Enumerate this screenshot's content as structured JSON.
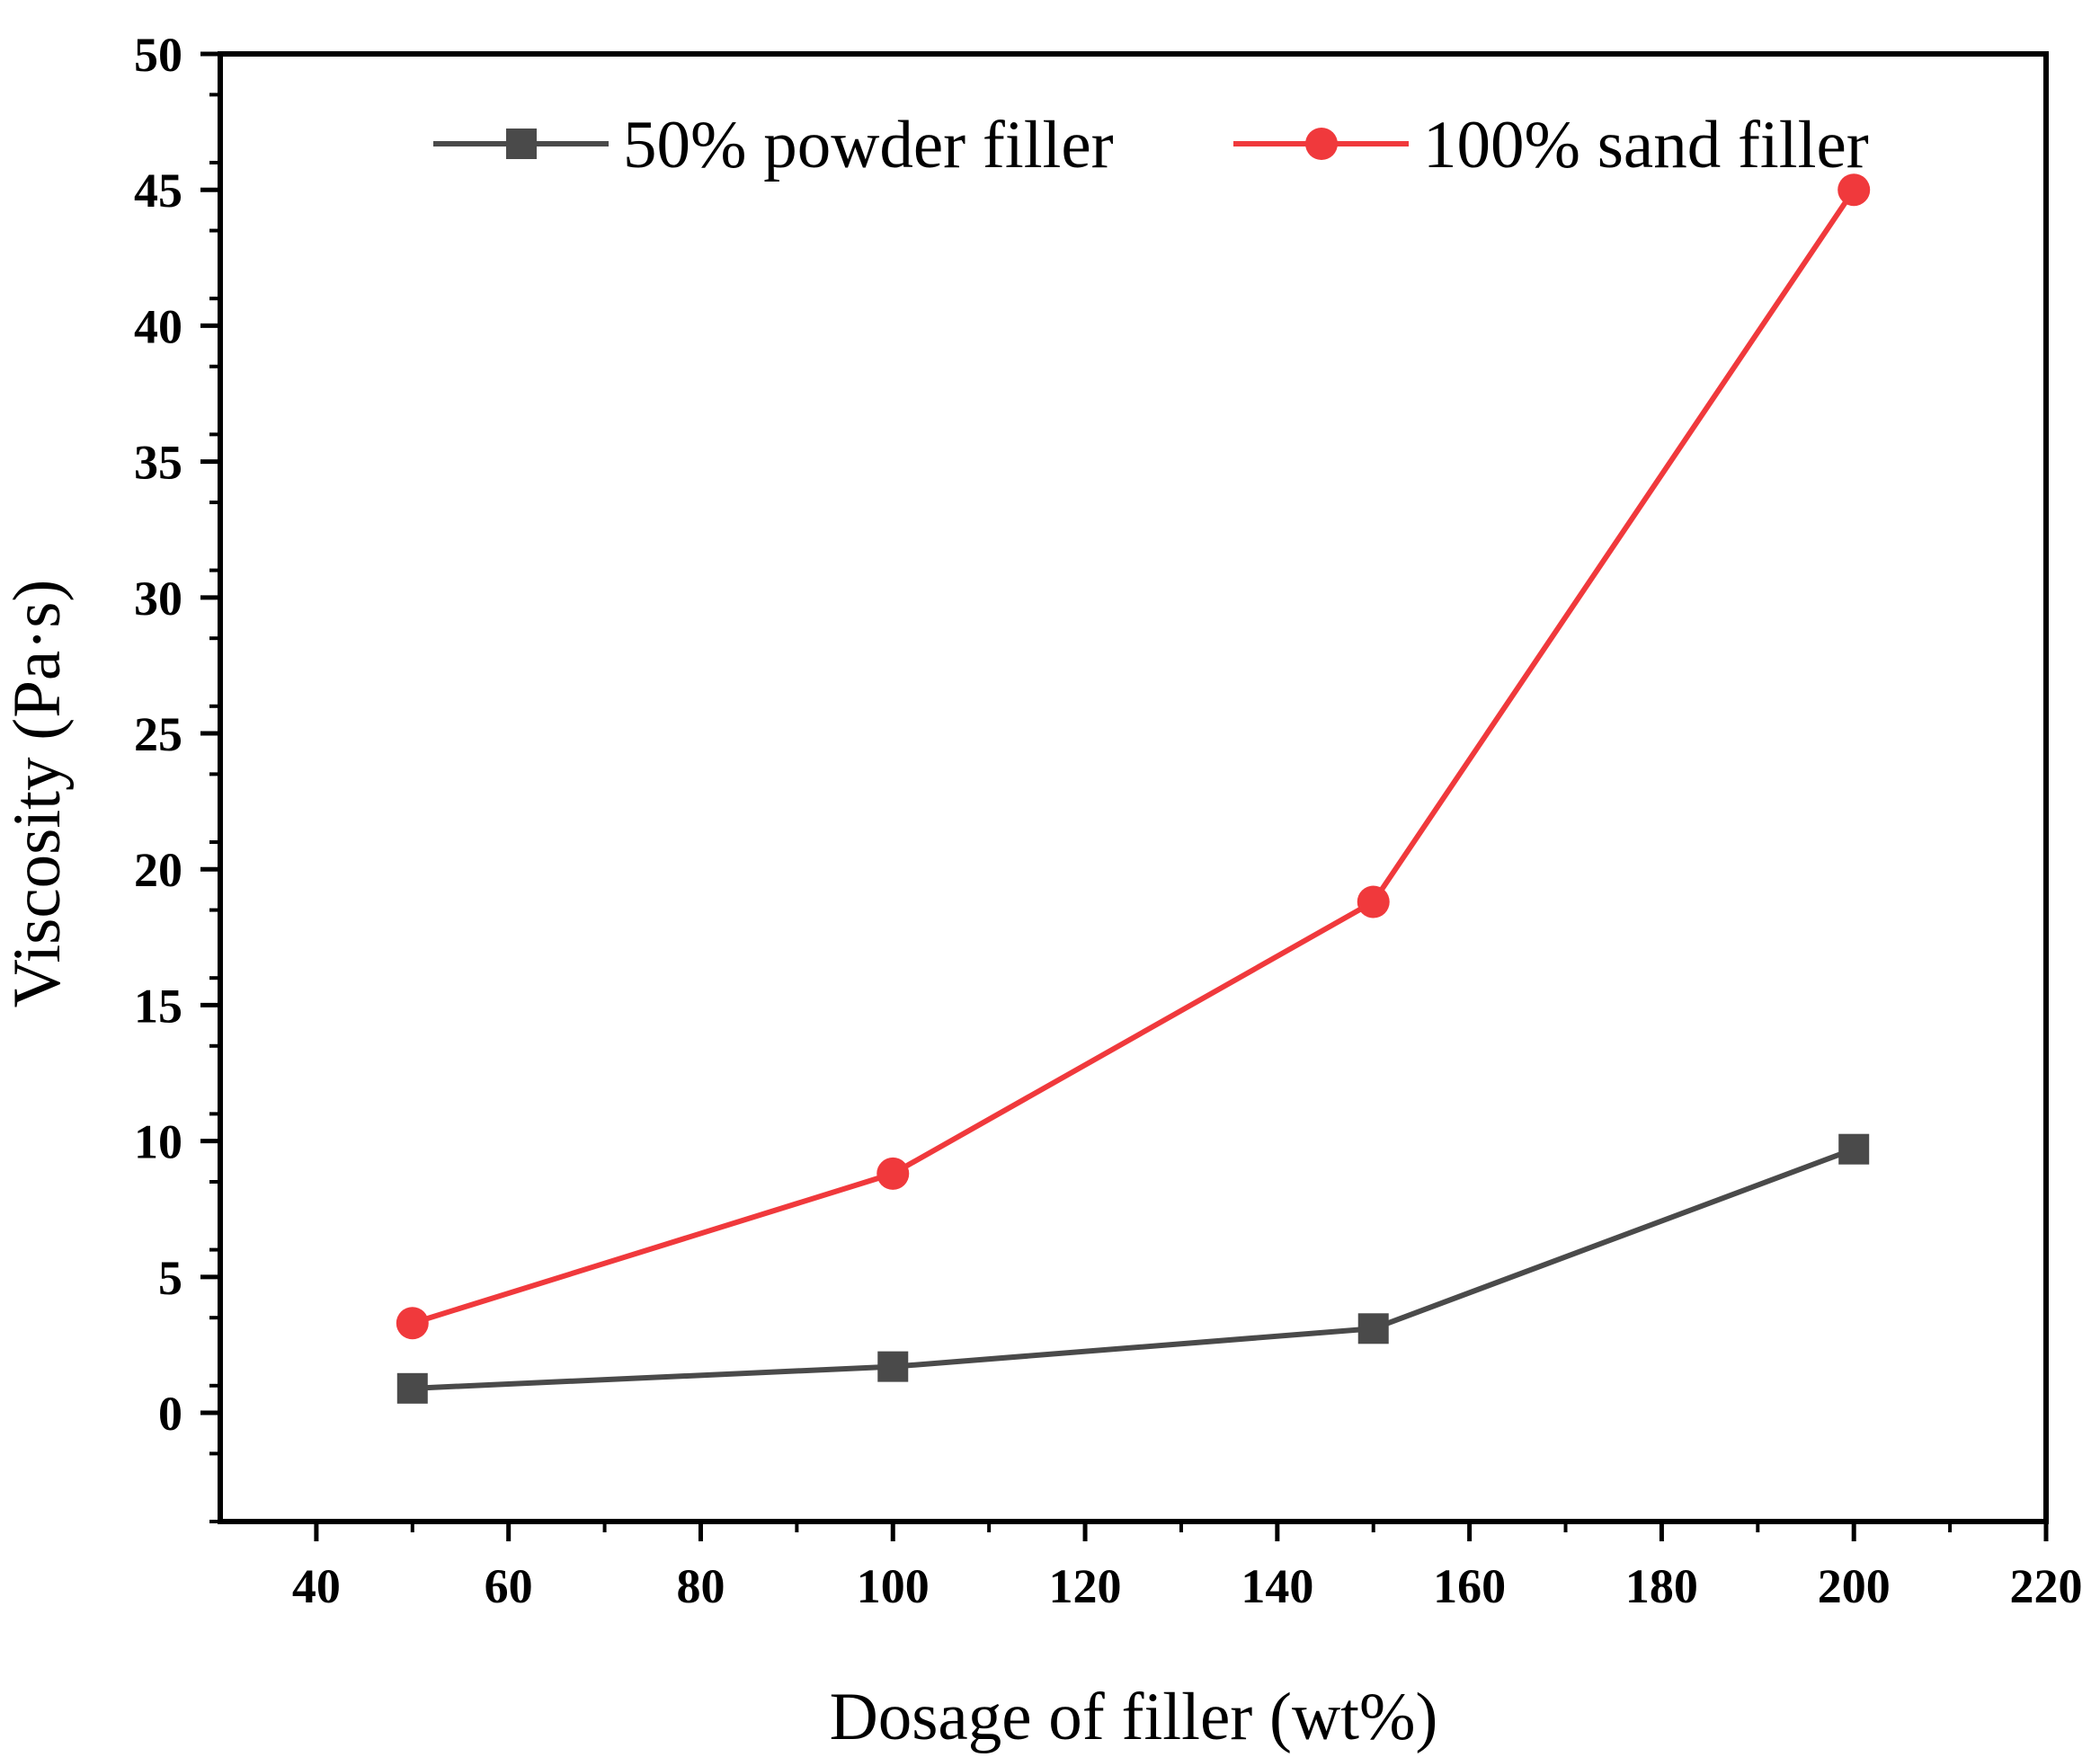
{
  "chart_data": {
    "type": "line",
    "title": "",
    "xlabel": "Dosage of filler (wt%)",
    "ylabel": "Viscosity (Pa·s)",
    "xlim": [
      30,
      220
    ],
    "ylim": [
      -4,
      50
    ],
    "x_ticks": [
      40,
      60,
      80,
      100,
      120,
      140,
      160,
      180,
      200,
      220
    ],
    "y_ticks": [
      0,
      5,
      10,
      15,
      20,
      25,
      30,
      35,
      40,
      45,
      50
    ],
    "grid": false,
    "legend_position": "top",
    "series": [
      {
        "name": "50% powder filler",
        "color": "#4a4a4a",
        "marker": "square",
        "x": [
          50,
          100,
          150,
          200
        ],
        "values": [
          0.9,
          1.7,
          3.1,
          9.7
        ]
      },
      {
        "name": "100% sand filler",
        "color": "#f0393c",
        "marker": "circle",
        "x": [
          50,
          100,
          150,
          200
        ],
        "values": [
          3.3,
          8.8,
          18.8,
          45.0
        ]
      }
    ]
  }
}
